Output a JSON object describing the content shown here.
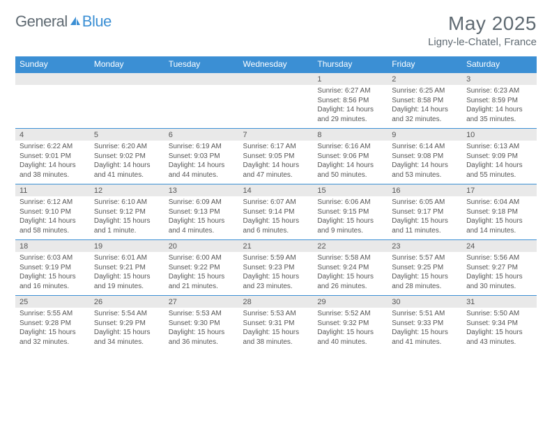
{
  "logo": {
    "text1": "General",
    "text2": "Blue"
  },
  "title": "May 2025",
  "location": "Ligny-le-Chatel, France",
  "colors": {
    "accent": "#3b8fd4",
    "header_text": "#ffffff",
    "num_bg": "#e9e9e9",
    "body_text": "#555555",
    "title_text": "#5f6a72"
  },
  "day_headers": [
    "Sunday",
    "Monday",
    "Tuesday",
    "Wednesday",
    "Thursday",
    "Friday",
    "Saturday"
  ],
  "weeks": [
    [
      null,
      null,
      null,
      null,
      {
        "n": "1",
        "sr": "6:27 AM",
        "ss": "8:56 PM",
        "dl": "14 hours and 29 minutes."
      },
      {
        "n": "2",
        "sr": "6:25 AM",
        "ss": "8:58 PM",
        "dl": "14 hours and 32 minutes."
      },
      {
        "n": "3",
        "sr": "6:23 AM",
        "ss": "8:59 PM",
        "dl": "14 hours and 35 minutes."
      }
    ],
    [
      {
        "n": "4",
        "sr": "6:22 AM",
        "ss": "9:01 PM",
        "dl": "14 hours and 38 minutes."
      },
      {
        "n": "5",
        "sr": "6:20 AM",
        "ss": "9:02 PM",
        "dl": "14 hours and 41 minutes."
      },
      {
        "n": "6",
        "sr": "6:19 AM",
        "ss": "9:03 PM",
        "dl": "14 hours and 44 minutes."
      },
      {
        "n": "7",
        "sr": "6:17 AM",
        "ss": "9:05 PM",
        "dl": "14 hours and 47 minutes."
      },
      {
        "n": "8",
        "sr": "6:16 AM",
        "ss": "9:06 PM",
        "dl": "14 hours and 50 minutes."
      },
      {
        "n": "9",
        "sr": "6:14 AM",
        "ss": "9:08 PM",
        "dl": "14 hours and 53 minutes."
      },
      {
        "n": "10",
        "sr": "6:13 AM",
        "ss": "9:09 PM",
        "dl": "14 hours and 55 minutes."
      }
    ],
    [
      {
        "n": "11",
        "sr": "6:12 AM",
        "ss": "9:10 PM",
        "dl": "14 hours and 58 minutes."
      },
      {
        "n": "12",
        "sr": "6:10 AM",
        "ss": "9:12 PM",
        "dl": "15 hours and 1 minute."
      },
      {
        "n": "13",
        "sr": "6:09 AM",
        "ss": "9:13 PM",
        "dl": "15 hours and 4 minutes."
      },
      {
        "n": "14",
        "sr": "6:07 AM",
        "ss": "9:14 PM",
        "dl": "15 hours and 6 minutes."
      },
      {
        "n": "15",
        "sr": "6:06 AM",
        "ss": "9:15 PM",
        "dl": "15 hours and 9 minutes."
      },
      {
        "n": "16",
        "sr": "6:05 AM",
        "ss": "9:17 PM",
        "dl": "15 hours and 11 minutes."
      },
      {
        "n": "17",
        "sr": "6:04 AM",
        "ss": "9:18 PM",
        "dl": "15 hours and 14 minutes."
      }
    ],
    [
      {
        "n": "18",
        "sr": "6:03 AM",
        "ss": "9:19 PM",
        "dl": "15 hours and 16 minutes."
      },
      {
        "n": "19",
        "sr": "6:01 AM",
        "ss": "9:21 PM",
        "dl": "15 hours and 19 minutes."
      },
      {
        "n": "20",
        "sr": "6:00 AM",
        "ss": "9:22 PM",
        "dl": "15 hours and 21 minutes."
      },
      {
        "n": "21",
        "sr": "5:59 AM",
        "ss": "9:23 PM",
        "dl": "15 hours and 23 minutes."
      },
      {
        "n": "22",
        "sr": "5:58 AM",
        "ss": "9:24 PM",
        "dl": "15 hours and 26 minutes."
      },
      {
        "n": "23",
        "sr": "5:57 AM",
        "ss": "9:25 PM",
        "dl": "15 hours and 28 minutes."
      },
      {
        "n": "24",
        "sr": "5:56 AM",
        "ss": "9:27 PM",
        "dl": "15 hours and 30 minutes."
      }
    ],
    [
      {
        "n": "25",
        "sr": "5:55 AM",
        "ss": "9:28 PM",
        "dl": "15 hours and 32 minutes."
      },
      {
        "n": "26",
        "sr": "5:54 AM",
        "ss": "9:29 PM",
        "dl": "15 hours and 34 minutes."
      },
      {
        "n": "27",
        "sr": "5:53 AM",
        "ss": "9:30 PM",
        "dl": "15 hours and 36 minutes."
      },
      {
        "n": "28",
        "sr": "5:53 AM",
        "ss": "9:31 PM",
        "dl": "15 hours and 38 minutes."
      },
      {
        "n": "29",
        "sr": "5:52 AM",
        "ss": "9:32 PM",
        "dl": "15 hours and 40 minutes."
      },
      {
        "n": "30",
        "sr": "5:51 AM",
        "ss": "9:33 PM",
        "dl": "15 hours and 41 minutes."
      },
      {
        "n": "31",
        "sr": "5:50 AM",
        "ss": "9:34 PM",
        "dl": "15 hours and 43 minutes."
      }
    ]
  ],
  "labels": {
    "sunrise": "Sunrise:",
    "sunset": "Sunset:",
    "daylight": "Daylight:"
  }
}
